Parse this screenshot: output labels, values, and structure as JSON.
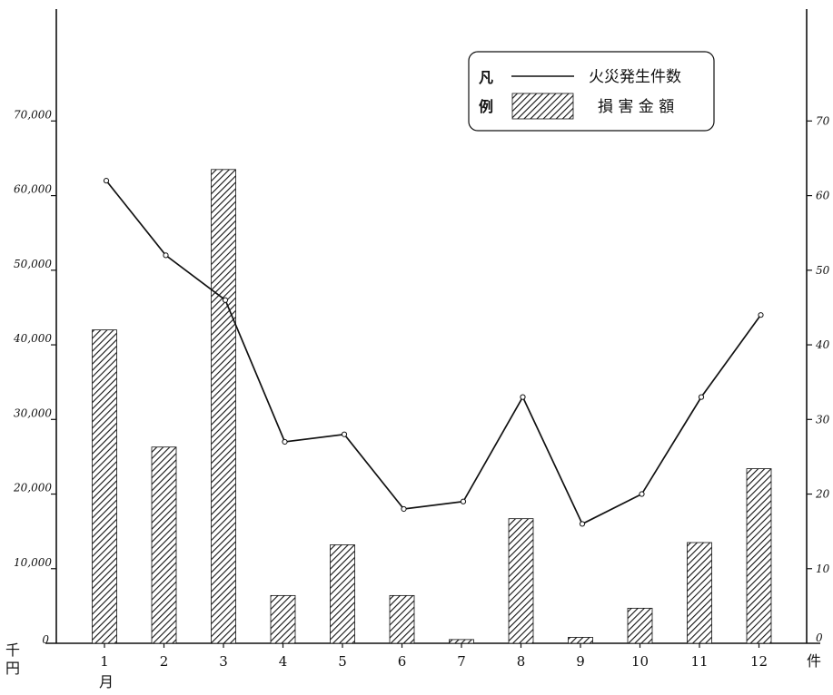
{
  "chart_data": {
    "type": "bar",
    "categories": [
      "1",
      "2",
      "3",
      "4",
      "5",
      "6",
      "7",
      "8",
      "9",
      "10",
      "11",
      "12"
    ],
    "x_unit_label": "月",
    "left_axis": {
      "unit_label": "千\n円",
      "ylim": [
        0,
        85000
      ],
      "ticks": [
        "0",
        "10,000",
        "20,000",
        "30,000",
        "40,000",
        "50,000",
        "60,000",
        "70,000"
      ],
      "tick_values": [
        0,
        10000,
        20000,
        30000,
        40000,
        50000,
        60000,
        70000
      ]
    },
    "right_axis": {
      "unit_label": "件",
      "ylim": [
        0,
        85
      ],
      "ticks": [
        "0",
        "10",
        "20",
        "30",
        "40",
        "50",
        "60",
        "70"
      ],
      "tick_values": [
        0,
        10,
        20,
        30,
        40,
        50,
        60,
        70
      ]
    },
    "series": [
      {
        "name": "損害金額",
        "kind": "bar",
        "axis": "left",
        "values": [
          42000,
          26300,
          63500,
          6400,
          13200,
          6400,
          500,
          16700,
          800,
          4700,
          13500,
          23400
        ]
      },
      {
        "name": "火災発生件数",
        "kind": "line",
        "axis": "right",
        "values": [
          62,
          52,
          46,
          27,
          28,
          18,
          19,
          33,
          16,
          20,
          33,
          44
        ]
      }
    ],
    "legend": {
      "title_chars": [
        "凡",
        "例"
      ],
      "position": "top-right",
      "entries": [
        "火災発生件数",
        "損 害 金 額"
      ]
    },
    "grid": false
  }
}
